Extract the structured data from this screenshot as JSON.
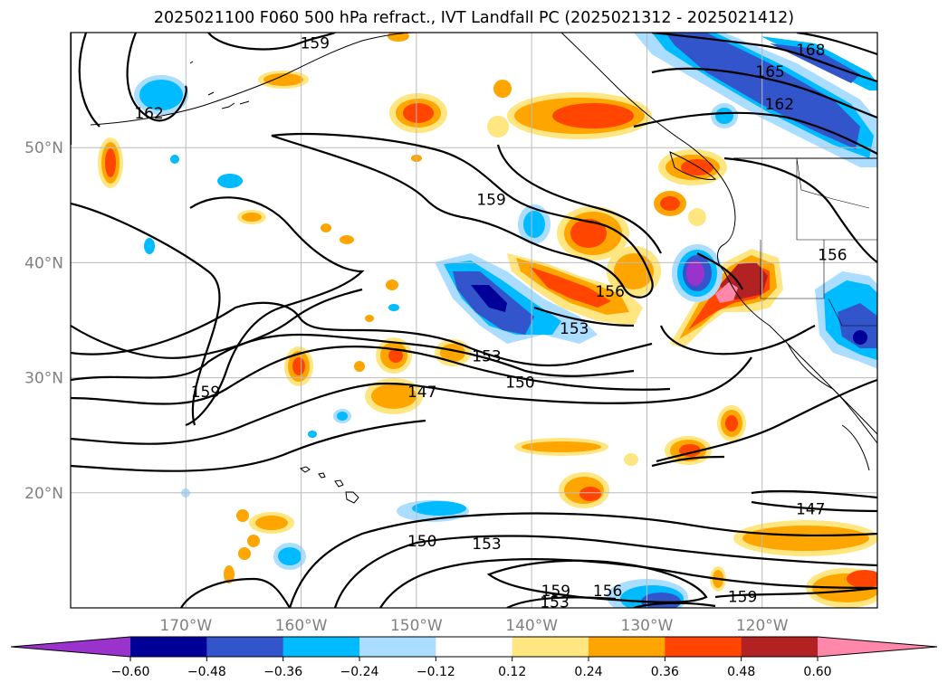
{
  "title": "2025021100 F060 500 hPa refract., IVT Landfall PC (2025021312 - 2025021412)",
  "lat_labels": [
    {
      "lat": 50,
      "text": "50°N"
    },
    {
      "lat": 40,
      "text": "40°N"
    },
    {
      "lat": 30,
      "text": "30°N"
    },
    {
      "lat": 20,
      "text": "20°N"
    }
  ],
  "lon_labels": [
    {
      "lon": -170,
      "text": "170°W"
    },
    {
      "lon": -160,
      "text": "160°W"
    },
    {
      "lon": -150,
      "text": "150°W"
    },
    {
      "lon": -140,
      "text": "140°W"
    },
    {
      "lon": -130,
      "text": "130°W"
    },
    {
      "lon": -120,
      "text": "120°W"
    }
  ],
  "extent": {
    "lon_min": -180,
    "lon_max": -110,
    "lat_min": 10,
    "lat_max": 60
  },
  "colorbar": {
    "ticks": [
      "−0.60",
      "−0.48",
      "−0.36",
      "−0.24",
      "−0.12",
      "0.12",
      "0.24",
      "0.36",
      "0.48",
      "0.60"
    ],
    "colors": [
      "#9933cc",
      "#000099",
      "#3355cc",
      "#00bbff",
      "#aaddff",
      "#ffffff",
      "#ffe680",
      "#ffa500",
      "#ff4500",
      "#b22222",
      "#ff88aa"
    ]
  },
  "contour_labels": [
    {
      "text": "159",
      "lon": -158.8,
      "lat": 59.1
    },
    {
      "text": "162",
      "lon": -173.2,
      "lat": 53.0
    },
    {
      "text": "168",
      "lon": -115.8,
      "lat": 58.5
    },
    {
      "text": "165",
      "lon": -119.3,
      "lat": 56.6
    },
    {
      "text": "162",
      "lon": -118.5,
      "lat": 53.8
    },
    {
      "text": "159",
      "lon": -143.5,
      "lat": 45.5
    },
    {
      "text": "156",
      "lon": -133.2,
      "lat": 37.5
    },
    {
      "text": "153",
      "lon": -136.3,
      "lat": 34.3
    },
    {
      "text": "153",
      "lon": -143.9,
      "lat": 31.9
    },
    {
      "text": "150",
      "lon": -141.0,
      "lat": 29.6
    },
    {
      "text": "147",
      "lon": -149.5,
      "lat": 28.8
    },
    {
      "text": "159",
      "lon": -168.3,
      "lat": 28.8
    },
    {
      "text": "156",
      "lon": -113.9,
      "lat": 40.7
    },
    {
      "text": "147",
      "lon": -115.8,
      "lat": 18.6
    },
    {
      "text": "150",
      "lon": -149.5,
      "lat": 15.8
    },
    {
      "text": "153",
      "lon": -143.9,
      "lat": 15.6
    },
    {
      "text": "159",
      "lon": -137.9,
      "lat": 11.5
    },
    {
      "text": "156",
      "lon": -133.4,
      "lat": 11.5
    },
    {
      "text": "153",
      "lon": -138.0,
      "lat": 10.5
    },
    {
      "text": "159",
      "lon": -121.7,
      "lat": 11.0
    }
  ]
}
